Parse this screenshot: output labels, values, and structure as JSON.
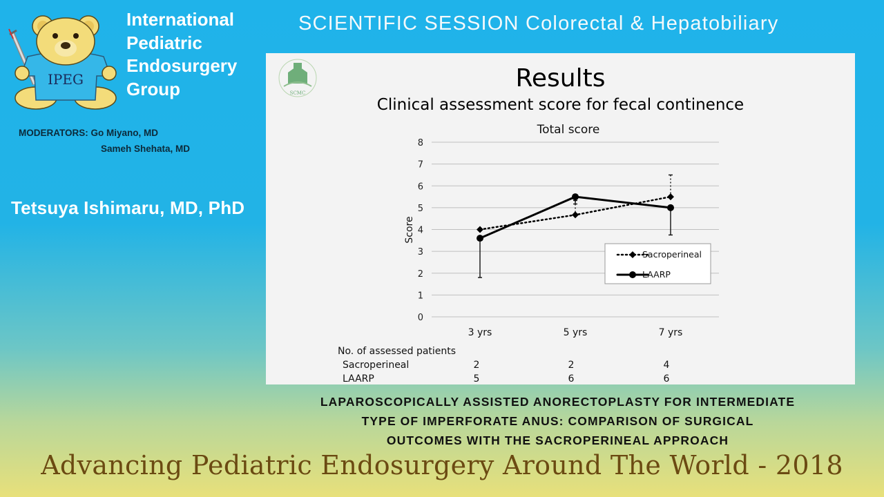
{
  "header": {
    "org_lines": [
      "International",
      "Pediatric",
      "Endosurgery",
      "Group"
    ],
    "logo_text": "IPEG",
    "session": "SCIENTIFIC SESSION Colorectal & Hepatobiliary"
  },
  "moderators": {
    "label": "MODERATORS:",
    "names": [
      "Go Miyano, MD",
      "Sameh Shehata, MD"
    ]
  },
  "presenter": "Tetsuya Ishimaru, MD, PhD",
  "slide": {
    "title": "Results",
    "subtitle": "Clinical assessment score for fecal continence",
    "logo_text": "SCMC",
    "table": {
      "header": "No. of assessed patients",
      "rows": [
        {
          "label": "Sacroperineal",
          "values": [
            "2",
            "2",
            "4"
          ]
        },
        {
          "label": "LAARP",
          "values": [
            "5",
            "6",
            "6"
          ]
        }
      ]
    }
  },
  "chart_data": {
    "type": "line",
    "title": "Total score",
    "xlabel": "",
    "ylabel": "Score",
    "categories": [
      "3 yrs",
      "5 yrs",
      "7 yrs"
    ],
    "ylim": [
      0,
      8
    ],
    "yticks": [
      0,
      1,
      2,
      3,
      4,
      5,
      6,
      7,
      8
    ],
    "grid": true,
    "legend_position": "lower-right",
    "series": [
      {
        "name": "Sacroperineal",
        "values": [
          4.0,
          4.67,
          5.5
        ],
        "err_upper": [
          4.0,
          5.33,
          6.5
        ],
        "err_lower": [
          4.0,
          4.67,
          5.5
        ],
        "style": "dotted",
        "marker": "diamond",
        "color": "#000000"
      },
      {
        "name": "LAARP",
        "values": [
          3.6,
          5.5,
          5.0
        ],
        "err_upper": [
          3.6,
          5.5,
          5.0
        ],
        "err_lower": [
          1.8,
          5.17,
          3.75
        ],
        "style": "solid",
        "marker": "circle",
        "color": "#000000"
      }
    ]
  },
  "paper_title": [
    "LAPAROSCOPICALLY ASSISTED ANORECTOPLASTY FOR INTERMEDIATE",
    "TYPE OF IMPERFORATE ANUS: COMPARISON OF SURGICAL",
    "OUTCOMES WITH THE SACROPERINEAL APPROACH"
  ],
  "footer": "Advancing Pediatric Endosurgery Around The World - 2018"
}
